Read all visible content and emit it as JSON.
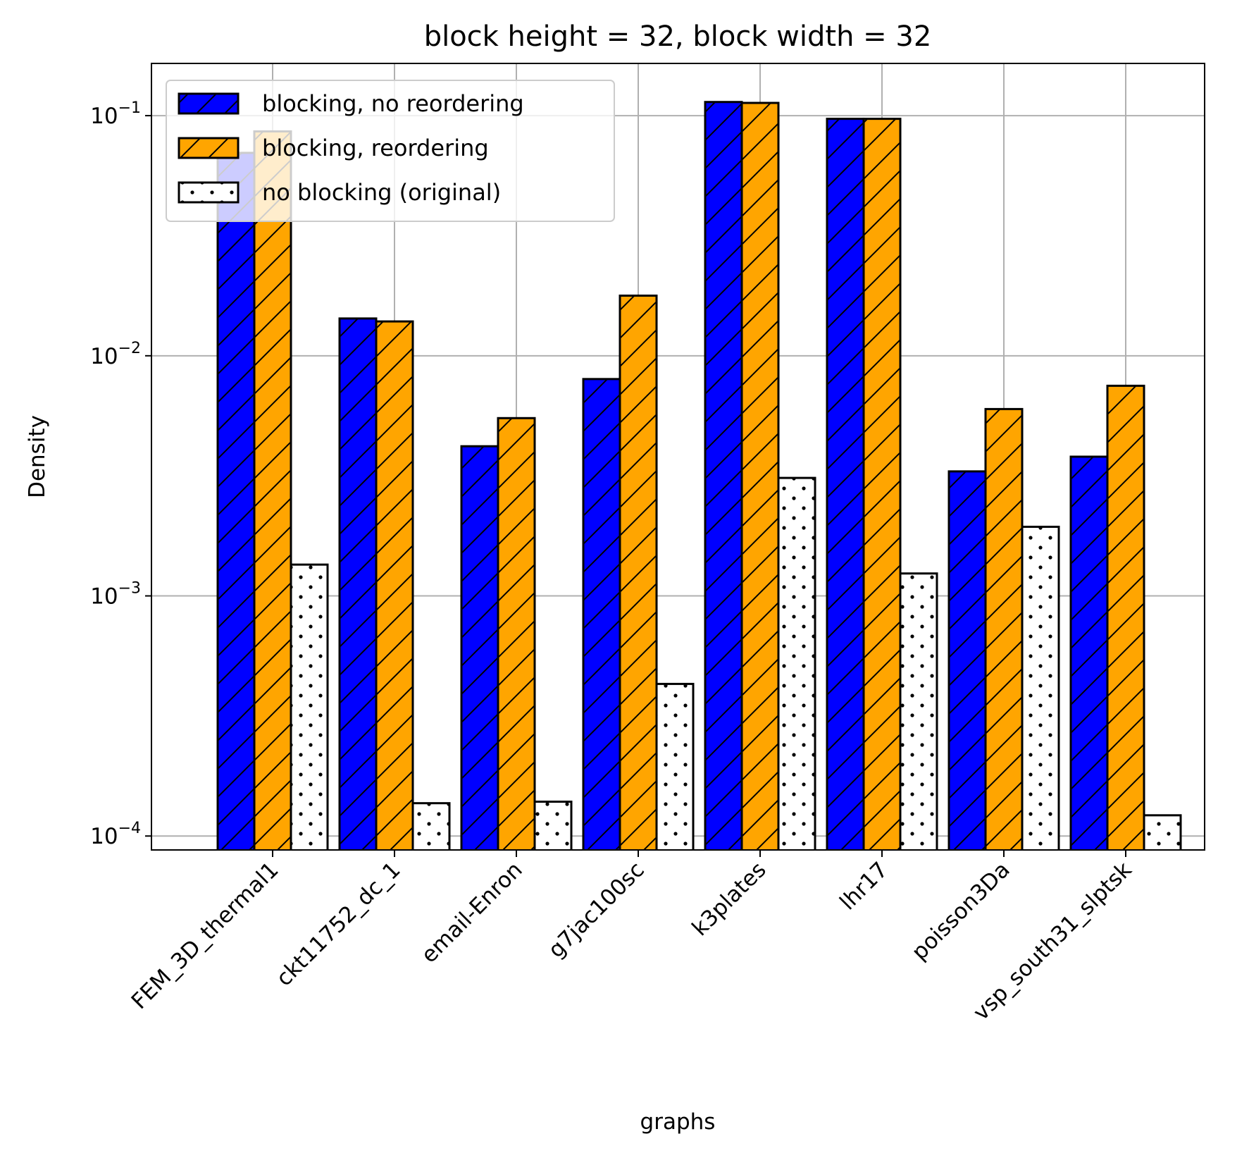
{
  "chart_data": {
    "type": "bar",
    "title": "block height = 32, block width = 32",
    "xlabel": "graphs",
    "ylabel": "Density",
    "yscale": "log",
    "ylim": [
      8.75e-05,
      0.165
    ],
    "yticks": [
      {
        "value": 0.1,
        "base": "10",
        "exp": "−1"
      },
      {
        "value": 0.01,
        "base": "10",
        "exp": "−2"
      },
      {
        "value": 0.001,
        "base": "10",
        "exp": "−3"
      },
      {
        "value": 0.0001,
        "base": "10",
        "exp": "−4"
      }
    ],
    "grid": true,
    "legend_position": "top-left",
    "categories": [
      "FEM_3D_thermal1",
      "ckt11752_dc_1",
      "email-Enron",
      "g7jac100sc",
      "k3plates",
      "lhr17",
      "poisson3Da",
      "vsp_south31_slptsk"
    ],
    "series": [
      {
        "name": "blocking, no reordering",
        "color": "#0000ff",
        "pattern": "hatch",
        "values": [
          0.07,
          0.0143,
          0.0042,
          0.008,
          0.114,
          0.097,
          0.0033,
          0.0038
        ]
      },
      {
        "name": "blocking, reordering",
        "color": "#ffa500",
        "pattern": "hatch",
        "values": [
          0.086,
          0.0139,
          0.0055,
          0.0178,
          0.113,
          0.097,
          0.006,
          0.0075
        ]
      },
      {
        "name": "no blocking (original)",
        "color": "#ffffff",
        "pattern": "dots",
        "values": [
          0.00135,
          0.000137,
          0.000139,
          0.00043,
          0.0031,
          0.00124,
          0.00194,
          0.000122
        ]
      }
    ]
  }
}
